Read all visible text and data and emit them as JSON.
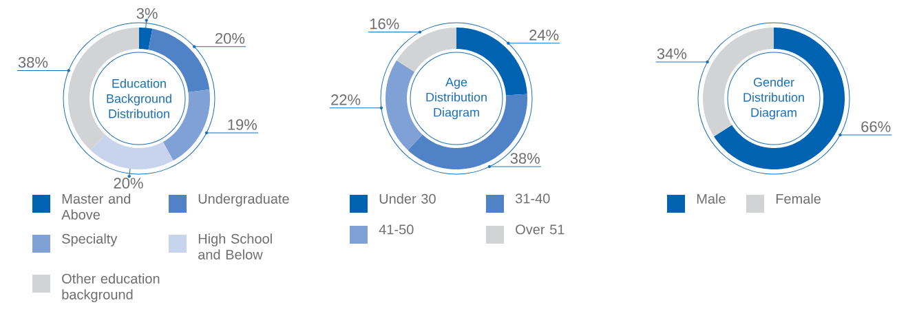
{
  "chart_data": [
    {
      "type": "donut",
      "title": "Education Background Distribution",
      "categories": [
        "Master and Above",
        "Undergraduate",
        "Specialty",
        "High School and Below",
        "Other education background"
      ],
      "values": [
        3,
        20,
        19,
        20,
        38
      ],
      "colors": [
        "#0063b1",
        "#4f82c6",
        "#7fa1d6",
        "#c8d3ec",
        "#d2d3d5"
      ],
      "value_labels": [
        "3%",
        "20%",
        "19%",
        "20%",
        "38%"
      ],
      "legend": "bottom"
    },
    {
      "type": "donut",
      "title": "Age Distribution Diagram",
      "categories": [
        "Under 30",
        "31-40",
        "41-50",
        "Over 51"
      ],
      "values": [
        24,
        38,
        22,
        16
      ],
      "colors": [
        "#0063b1",
        "#4f82c6",
        "#7fa1d6",
        "#d2d3d5"
      ],
      "value_labels": [
        "24%",
        "38%",
        "22%",
        "16%"
      ],
      "legend": "bottom"
    },
    {
      "type": "donut",
      "title": "Gender Distribution Diagram",
      "categories": [
        "Male",
        "Female"
      ],
      "values": [
        66,
        34
      ],
      "colors": [
        "#0063b1",
        "#d2d3d5"
      ],
      "value_labels": [
        "66%",
        "34%"
      ],
      "legend": "bottom"
    }
  ]
}
